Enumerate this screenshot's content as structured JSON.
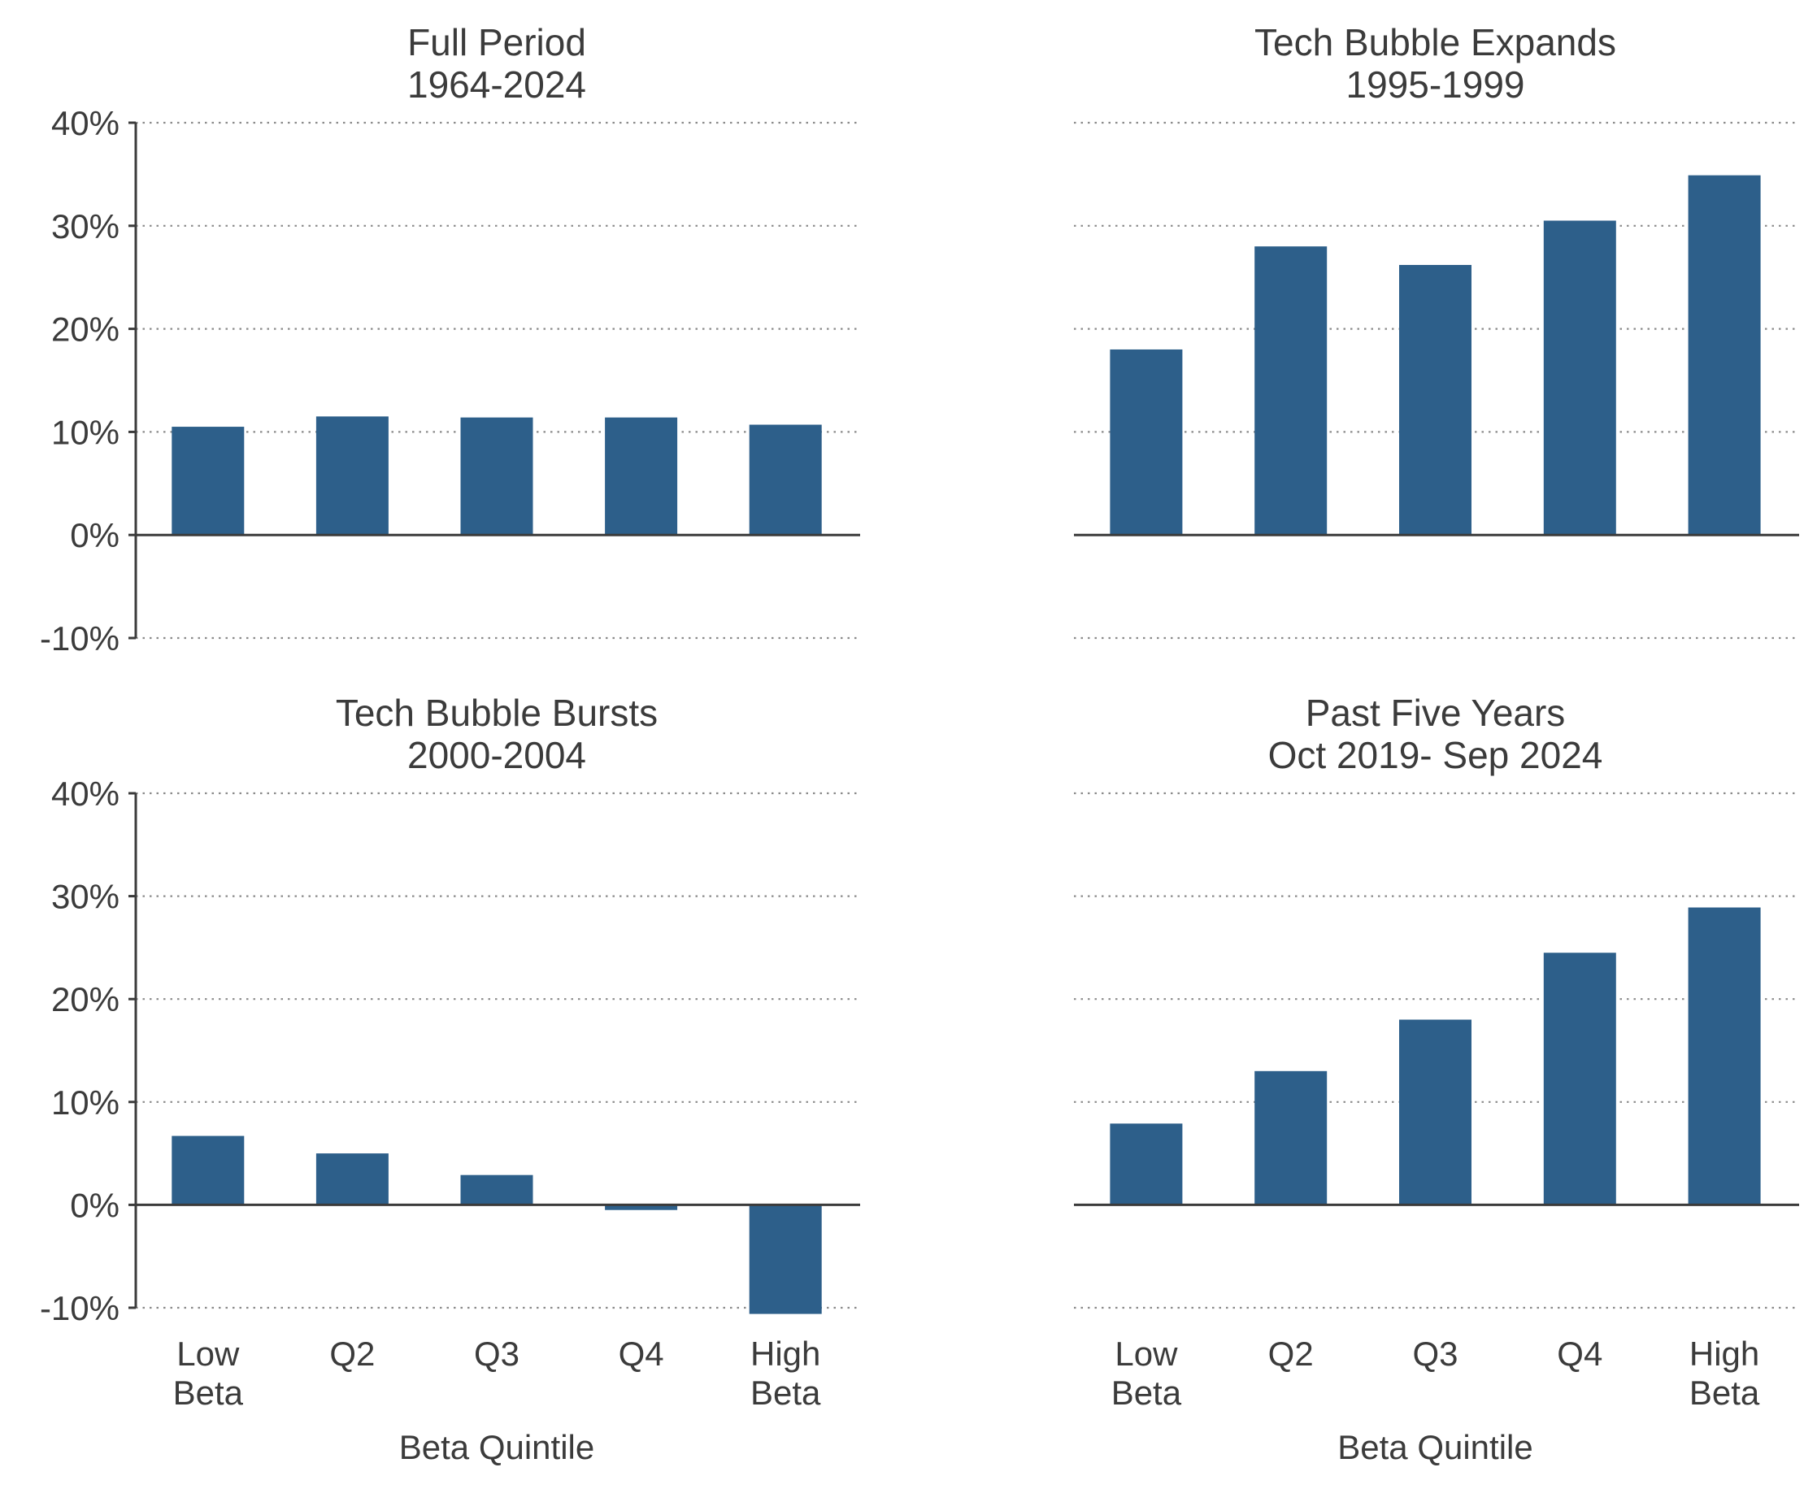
{
  "colors": {
    "bar": "#2d5f8a",
    "axis": "#3b3b3b",
    "grid": "#8a8a8a",
    "text": "#3b3b3b"
  },
  "chart_data": [
    {
      "type": "bar",
      "title": [
        "Full Period",
        "1964-2024"
      ],
      "categories": [
        [
          "Low",
          "Beta"
        ],
        [
          "Q2"
        ],
        [
          "Q3"
        ],
        [
          "Q4"
        ],
        [
          "High",
          "Beta"
        ]
      ],
      "values": [
        10.5,
        11.5,
        11.4,
        11.4,
        10.7
      ],
      "ylim": [
        -10,
        40
      ],
      "yticks": [
        "-10%",
        "0%",
        "10%",
        "20%",
        "30%",
        "40%"
      ],
      "ytick_values": [
        -10,
        0,
        10,
        20,
        30,
        40
      ],
      "grid": true,
      "show_y_labels": true,
      "show_x_labels": false,
      "xlabel": ""
    },
    {
      "type": "bar",
      "title": [
        "Tech Bubble Expands",
        "1995-1999"
      ],
      "categories": [
        [
          "Low",
          "Beta"
        ],
        [
          "Q2"
        ],
        [
          "Q3"
        ],
        [
          "Q4"
        ],
        [
          "High",
          "Beta"
        ]
      ],
      "values": [
        18.0,
        28.0,
        26.2,
        30.5,
        34.9
      ],
      "ylim": [
        -10,
        40
      ],
      "yticks": [
        "-10%",
        "0%",
        "10%",
        "20%",
        "30%",
        "40%"
      ],
      "ytick_values": [
        -10,
        0,
        10,
        20,
        30,
        40
      ],
      "grid": true,
      "show_y_labels": false,
      "show_x_labels": false,
      "xlabel": ""
    },
    {
      "type": "bar",
      "title": [
        "Tech Bubble Bursts",
        "2000-2004"
      ],
      "categories": [
        [
          "Low",
          "Beta"
        ],
        [
          "Q2"
        ],
        [
          "Q3"
        ],
        [
          "Q4"
        ],
        [
          "High",
          "Beta"
        ]
      ],
      "values": [
        6.7,
        5.0,
        2.9,
        -0.5,
        -10.6
      ],
      "ylim": [
        -10,
        40
      ],
      "yticks": [
        "-10%",
        "0%",
        "10%",
        "20%",
        "30%",
        "40%"
      ],
      "ytick_values": [
        -10,
        0,
        10,
        20,
        30,
        40
      ],
      "grid": true,
      "show_y_labels": true,
      "show_x_labels": true,
      "xlabel": "Beta Quintile"
    },
    {
      "type": "bar",
      "title": [
        "Past Five Years",
        "Oct 2019- Sep 2024"
      ],
      "categories": [
        [
          "Low",
          "Beta"
        ],
        [
          "Q2"
        ],
        [
          "Q3"
        ],
        [
          "Q4"
        ],
        [
          "High",
          "Beta"
        ]
      ],
      "values": [
        7.9,
        13.0,
        18.0,
        24.5,
        28.9
      ],
      "ylim": [
        -10,
        40
      ],
      "yticks": [
        "-10%",
        "0%",
        "10%",
        "20%",
        "30%",
        "40%"
      ],
      "ytick_values": [
        -10,
        0,
        10,
        20,
        30,
        40
      ],
      "grid": true,
      "show_y_labels": false,
      "show_x_labels": true,
      "xlabel": "Beta Quintile"
    }
  ]
}
